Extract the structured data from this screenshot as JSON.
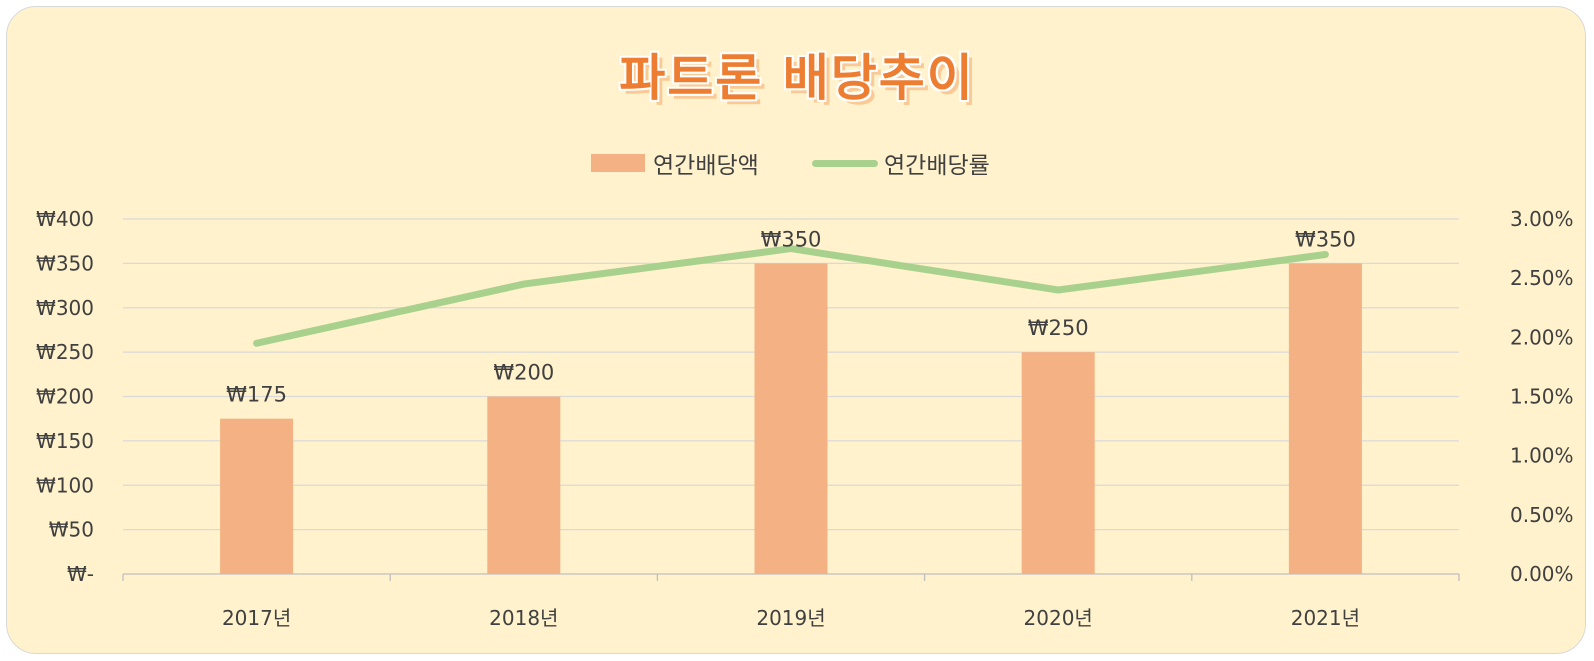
{
  "chart_data": {
    "type": "bar",
    "title": "파트론 배당추이",
    "categories": [
      "2017년",
      "2018년",
      "2019년",
      "2020년",
      "2021년"
    ],
    "series": [
      {
        "name": "연간배당액",
        "type": "bar",
        "axis": "left",
        "values": [
          175,
          200,
          350,
          250,
          350
        ],
        "color": "#f4b183"
      },
      {
        "name": "연간배당률",
        "type": "line",
        "axis": "right",
        "values": [
          1.95,
          2.45,
          2.75,
          2.4,
          2.7
        ],
        "color": "#a9d18e"
      }
    ],
    "data_labels": [
      "₩175",
      "₩200",
      "₩350",
      "₩250",
      "₩350"
    ],
    "y_left": {
      "range": [
        0,
        400
      ],
      "ticks": [
        0,
        50,
        100,
        150,
        200,
        250,
        300,
        350,
        400
      ],
      "tick_labels": [
        "₩-",
        "₩50",
        "₩100",
        "₩150",
        "₩200",
        "₩250",
        "₩300",
        "₩350",
        "₩400"
      ]
    },
    "y_right": {
      "range": [
        0,
        3
      ],
      "ticks": [
        0,
        0.5,
        1,
        1.5,
        2,
        2.5,
        3
      ],
      "tick_labels": [
        "0.00%",
        "0.50%",
        "1.00%",
        "1.50%",
        "2.00%",
        "2.50%",
        "3.00%"
      ]
    },
    "grid": true,
    "legend_position": "top"
  },
  "colors": {
    "background": "#fff2cc",
    "bar": "#f4b183",
    "line": "#a9d18e",
    "title": "#ed7d31",
    "grid": "#d9d9d9",
    "text": "#404040"
  }
}
